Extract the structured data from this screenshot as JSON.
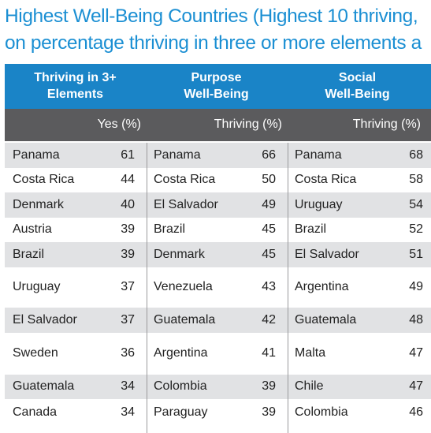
{
  "title": {
    "line1": "Highest Well-Being Countries (Highest 10 thriving,",
    "line2": "on percentage thriving in three or more elements a"
  },
  "columns": [
    {
      "header_line1": "Thriving in 3+",
      "header_line2": "Elements",
      "subheader": "Yes (%)"
    },
    {
      "header_line1": "Purpose",
      "header_line2": "Well-Being",
      "subheader": "Thriving (%)"
    },
    {
      "header_line1": "Social",
      "header_line2": "Well-Being",
      "subheader": "Thriving (%)"
    }
  ],
  "rows": [
    [
      {
        "country": "Panama",
        "value": "61"
      },
      {
        "country": "Panama",
        "value": "66"
      },
      {
        "country": "Panama",
        "value": "68"
      }
    ],
    [
      {
        "country": "Costa Rica",
        "value": "44"
      },
      {
        "country": "Costa Rica",
        "value": "50"
      },
      {
        "country": "Costa Rica",
        "value": "58"
      }
    ],
    [
      {
        "country": "Denmark",
        "value": "40"
      },
      {
        "country": "El Salvador",
        "value": "49"
      },
      {
        "country": "Uruguay",
        "value": "54"
      }
    ],
    [
      {
        "country": "Austria",
        "value": "39"
      },
      {
        "country": "Brazil",
        "value": "45"
      },
      {
        "country": "Brazil",
        "value": "52"
      }
    ],
    [
      {
        "country": "Brazil",
        "value": "39"
      },
      {
        "country": "Denmark",
        "value": "45"
      },
      {
        "country": "El Salvador",
        "value": "51"
      }
    ],
    [
      {
        "country": "Uruguay",
        "value": "37"
      },
      {
        "country": "Venezuela",
        "value": "43"
      },
      {
        "country": "Argentina",
        "value": "49"
      }
    ],
    [
      {
        "country": "El Salvador",
        "value": "37"
      },
      {
        "country": "Guatemala",
        "value": "42"
      },
      {
        "country": "Guatemala",
        "value": "48"
      }
    ],
    [
      {
        "country": "Sweden",
        "value": "36"
      },
      {
        "country": "Argentina",
        "value": "41"
      },
      {
        "country": "Malta",
        "value": "47"
      }
    ],
    [
      {
        "country": "Guatemala",
        "value": "34"
      },
      {
        "country": "Colombia",
        "value": "39"
      },
      {
        "country": "Chile",
        "value": "47"
      }
    ],
    [
      {
        "country": "Canada",
        "value": "34"
      },
      {
        "country": "Paraguay",
        "value": "39"
      },
      {
        "country": "Colombia",
        "value": "46"
      }
    ]
  ],
  "colors": {
    "title": "#1b8fd3",
    "header_blue": "#1a84c7",
    "header_gray": "#5b5b5d",
    "row_shade": "#e1e2e4"
  }
}
